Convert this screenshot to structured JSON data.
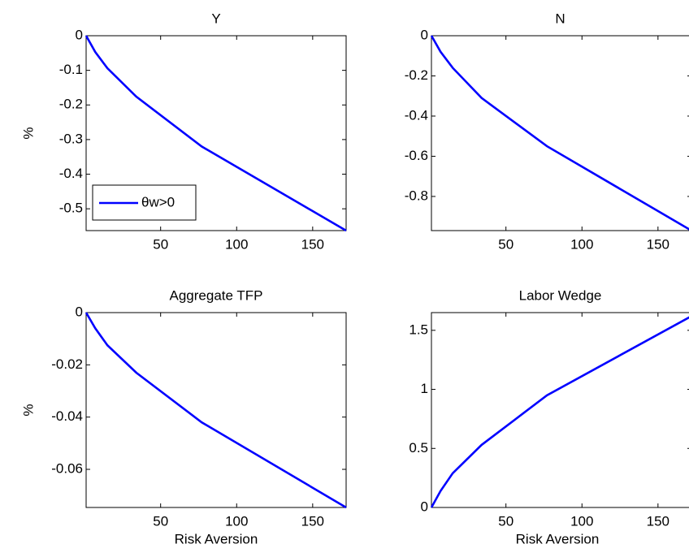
{
  "chart_data": [
    {
      "type": "line",
      "title": "Y",
      "ylabel": "%",
      "x": [
        1,
        7,
        15,
        34,
        77,
        172
      ],
      "series": [
        {
          "name": "θw>0",
          "color": "#0000ff",
          "values": [
            0,
            -0.047,
            -0.094,
            -0.176,
            -0.32,
            -0.563
          ]
        }
      ],
      "xlim": [
        1,
        172
      ],
      "ylim": [
        -0.563,
        0
      ],
      "xticks": [
        50,
        100,
        150
      ],
      "yticks": [
        -0.5,
        -0.4,
        -0.3,
        -0.2,
        -0.1,
        0
      ],
      "legend": "lower left"
    },
    {
      "type": "line",
      "title": "N",
      "x": [
        1,
        7,
        15,
        34,
        77,
        172
      ],
      "series": [
        {
          "color": "#0000ff",
          "values": [
            0,
            -0.08,
            -0.16,
            -0.31,
            -0.55,
            -0.97
          ]
        }
      ],
      "xlim": [
        1,
        172
      ],
      "ylim": [
        -0.97,
        0
      ],
      "xticks": [
        50,
        100,
        150
      ],
      "yticks": [
        -0.8,
        -0.6,
        -0.4,
        -0.2,
        0
      ]
    },
    {
      "type": "line",
      "title": "Aggregate TFP",
      "ylabel": "%",
      "xlabel": "Risk Aversion",
      "x": [
        1,
        7,
        15,
        34,
        77,
        172
      ],
      "series": [
        {
          "color": "#0000ff",
          "values": [
            0,
            -0.006,
            -0.0125,
            -0.023,
            -0.042,
            -0.0746
          ]
        }
      ],
      "xlim": [
        1,
        172
      ],
      "ylim": [
        -0.0746,
        0
      ],
      "xticks": [
        50,
        100,
        150
      ],
      "yticks": [
        -0.06,
        -0.04,
        -0.02,
        0
      ]
    },
    {
      "type": "line",
      "title": "Labor Wedge",
      "xlabel": "Risk Aversion",
      "x": [
        1,
        7,
        15,
        34,
        77,
        172
      ],
      "series": [
        {
          "color": "#0000ff",
          "values": [
            0,
            0.14,
            0.29,
            0.53,
            0.95,
            1.62
          ]
        }
      ],
      "xlim": [
        1,
        172
      ],
      "ylim": [
        0,
        1.65
      ],
      "xticks": [
        50,
        100,
        150
      ],
      "yticks": [
        0,
        0.5,
        1,
        1.5
      ]
    }
  ]
}
